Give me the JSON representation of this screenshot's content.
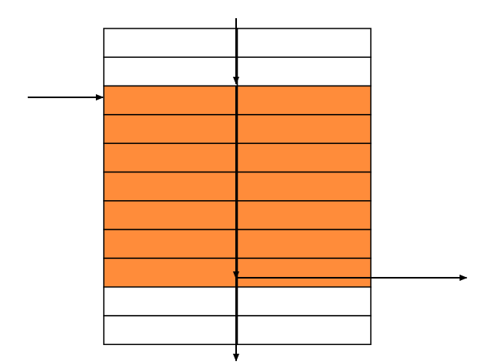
{
  "colors": {
    "background": "#ffffff",
    "highlight": "#ff8c3a",
    "empty": "#ffffff",
    "stroke": "#000000"
  },
  "grid": {
    "columns": 2,
    "rows": [
      {
        "state": "empty"
      },
      {
        "state": "empty"
      },
      {
        "state": "highlighted"
      },
      {
        "state": "highlighted"
      },
      {
        "state": "highlighted"
      },
      {
        "state": "highlighted"
      },
      {
        "state": "highlighted"
      },
      {
        "state": "highlighted"
      },
      {
        "state": "highlighted"
      },
      {
        "state": "empty"
      },
      {
        "state": "empty"
      }
    ]
  },
  "arrows": [
    {
      "name": "vertical-arrow-top",
      "direction": "down"
    },
    {
      "name": "vertical-arrow-middle",
      "direction": "down"
    },
    {
      "name": "vertical-arrow-bottom",
      "direction": "down"
    },
    {
      "name": "input-arrow-left",
      "direction": "right"
    },
    {
      "name": "output-arrow-right",
      "direction": "right"
    }
  ]
}
